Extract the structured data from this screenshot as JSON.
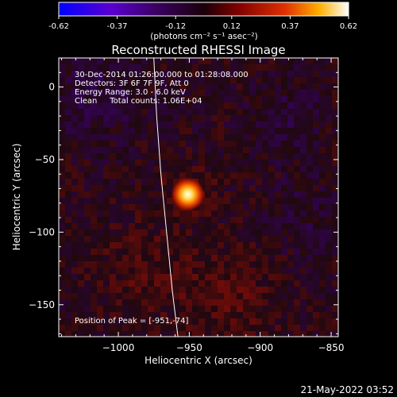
{
  "chart_data": {
    "type": "heatmap",
    "title": "Reconstructed RHESSI Image",
    "xlabel": "Heliocentric X (arcsec)",
    "ylabel": "Heliocentric Y (arcsec)",
    "xlim": [
      -1042,
      -845
    ],
    "ylim": [
      -172,
      20
    ],
    "x_ticks": [
      -1000,
      -950,
      -900,
      -850
    ],
    "y_ticks": [
      0,
      -50,
      -100,
      -150
    ],
    "colorbar": {
      "min": -0.62,
      "max": 0.62,
      "ticks": [
        -0.62,
        -0.37,
        -0.12,
        0.12,
        0.37,
        0.62
      ],
      "units_label": "(photons cm⁻² s⁻¹ asec⁻²)",
      "colormap": [
        "#0000ff",
        "#7a00c8",
        "#1a0018",
        "#7a0000",
        "#e02800",
        "#ffb000",
        "#ffffff"
      ]
    },
    "annotations": [
      "30-Dec-2014 01:26:00.000 to 01:28:08.000",
      "Detectors: 3F 6F 7F 9F, Att 0",
      "Energy Range: 3.0 - 6.0 keV",
      "Clean     Total counts: 1.06E+04"
    ],
    "peak_label": "Position of Peak = [-951,-74]",
    "peak": {
      "x": -951,
      "y": -74,
      "value": 0.62
    },
    "limb_curve": [
      [
        -975,
        20
      ],
      [
        -973,
        -20
      ],
      [
        -970,
        -60
      ],
      [
        -966,
        -100
      ],
      [
        -962,
        -140
      ],
      [
        -958,
        -172
      ]
    ],
    "timestamp": "21-May-2022 03:52"
  }
}
